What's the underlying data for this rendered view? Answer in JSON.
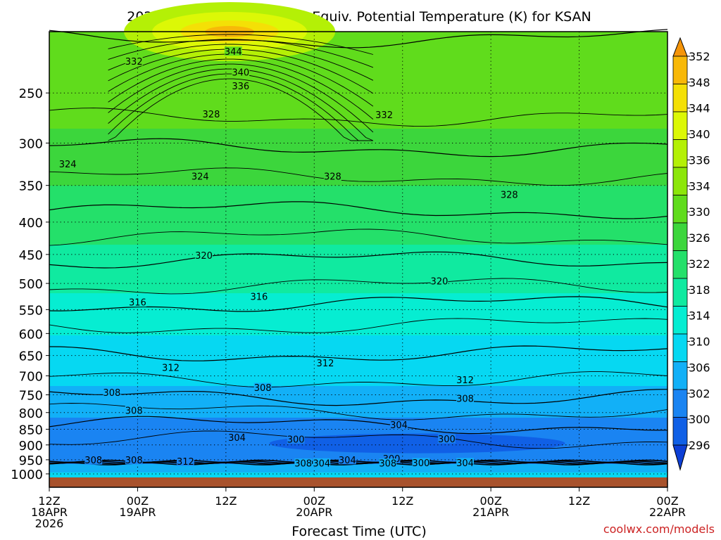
{
  "chart_data": {
    "type": "heatmap",
    "title": "2026041812 NAM Forecast Equiv. Potential Temperature (K) for KSAN",
    "xlabel": "Forecast Time (UTC)",
    "ylabel": "Pressure (hPa)",
    "y_ticks": [
      250,
      300,
      350,
      400,
      450,
      500,
      550,
      600,
      650,
      700,
      750,
      800,
      850,
      900,
      950,
      1000
    ],
    "ylim": [
      200,
      1013
    ],
    "x_ticks": [
      {
        "hour": 0,
        "line1": "12Z",
        "line2": "18APR",
        "line3": "2026"
      },
      {
        "hour": 12,
        "line1": "00Z",
        "line2": "19APR",
        "line3": ""
      },
      {
        "hour": 24,
        "line1": "12Z",
        "line2": "",
        "line3": ""
      },
      {
        "hour": 36,
        "line1": "00Z",
        "line2": "20APR",
        "line3": ""
      },
      {
        "hour": 48,
        "line1": "12Z",
        "line2": "",
        "line3": ""
      },
      {
        "hour": 60,
        "line1": "00Z",
        "line2": "21APR",
        "line3": ""
      },
      {
        "hour": 72,
        "line1": "12Z",
        "line2": "",
        "line3": ""
      },
      {
        "hour": 84,
        "line1": "00Z",
        "line2": "22APR",
        "line3": ""
      }
    ],
    "xlim": [
      0,
      84
    ],
    "colorbar": {
      "levels": [
        296,
        300,
        302,
        306,
        310,
        314,
        318,
        322,
        326,
        330,
        334,
        336,
        340,
        344,
        348,
        352
      ],
      "colors": [
        "#0d3fd6",
        "#1060e6",
        "#1a84f2",
        "#12b0f7",
        "#06d8f2",
        "#06edd2",
        "#10eaa0",
        "#24e06a",
        "#3cd63c",
        "#60dc1c",
        "#8ce60a",
        "#b4f006",
        "#dcf806",
        "#f4e006",
        "#f8b808",
        "#f59408"
      ]
    },
    "mean_profile": [
      {
        "p": 200,
        "theta": 332
      },
      {
        "p": 250,
        "theta": 332
      },
      {
        "p": 300,
        "theta": 329
      },
      {
        "p": 350,
        "theta": 326
      },
      {
        "p": 400,
        "theta": 324
      },
      {
        "p": 450,
        "theta": 321
      },
      {
        "p": 500,
        "theta": 319
      },
      {
        "p": 550,
        "theta": 316
      },
      {
        "p": 600,
        "theta": 314
      },
      {
        "p": 650,
        "theta": 312.5
      },
      {
        "p": 700,
        "theta": 311
      },
      {
        "p": 750,
        "theta": 309
      },
      {
        "p": 800,
        "theta": 306.5
      },
      {
        "p": 850,
        "theta": 304
      },
      {
        "p": 900,
        "theta": 302
      },
      {
        "p": 950,
        "theta": 305
      },
      {
        "p": 1000,
        "theta": 311
      },
      {
        "p": 1013,
        "theta": 312
      }
    ],
    "contour_labels": [
      {
        "text": "344",
        "hour": 25.0,
        "p": 215
      },
      {
        "text": "340",
        "hour": 26.0,
        "p": 232
      },
      {
        "text": "336",
        "hour": 26.0,
        "p": 244
      },
      {
        "text": "332",
        "hour": 11.5,
        "p": 223
      },
      {
        "text": "332",
        "hour": 45.5,
        "p": 271
      },
      {
        "text": "328",
        "hour": 22.0,
        "p": 270
      },
      {
        "text": "328",
        "hour": 38.5,
        "p": 339
      },
      {
        "text": "328",
        "hour": 62.5,
        "p": 362
      },
      {
        "text": "324",
        "hour": 2.5,
        "p": 324
      },
      {
        "text": "324",
        "hour": 20.5,
        "p": 339
      },
      {
        "text": "320",
        "hour": 21.0,
        "p": 452
      },
      {
        "text": "320",
        "hour": 53.0,
        "p": 496
      },
      {
        "text": "316",
        "hour": 12.0,
        "p": 536
      },
      {
        "text": "316",
        "hour": 28.5,
        "p": 525
      },
      {
        "text": "312",
        "hour": 16.5,
        "p": 680
      },
      {
        "text": "312",
        "hour": 37.5,
        "p": 668
      },
      {
        "text": "312",
        "hour": 56.5,
        "p": 711
      },
      {
        "text": "308",
        "hour": 8.5,
        "p": 744
      },
      {
        "text": "308",
        "hour": 29.0,
        "p": 731
      },
      {
        "text": "308",
        "hour": 56.5,
        "p": 761
      },
      {
        "text": "308",
        "hour": 11.5,
        "p": 794
      },
      {
        "text": "304",
        "hour": 47.5,
        "p": 837
      },
      {
        "text": "304",
        "hour": 25.5,
        "p": 877
      },
      {
        "text": "300",
        "hour": 33.5,
        "p": 882
      },
      {
        "text": "300",
        "hour": 54.0,
        "p": 881
      },
      {
        "text": "308",
        "hour": 6.0,
        "p": 952
      },
      {
        "text": "308",
        "hour": 11.5,
        "p": 951
      },
      {
        "text": "312",
        "hour": 18.5,
        "p": 956
      },
      {
        "text": "308",
        "hour": 34.5,
        "p": 963
      },
      {
        "text": "304",
        "hour": 37.0,
        "p": 962
      },
      {
        "text": "304",
        "hour": 40.5,
        "p": 951
      },
      {
        "text": "300",
        "hour": 46.5,
        "p": 946
      },
      {
        "text": "308",
        "hour": 46.0,
        "p": 963
      },
      {
        "text": "300",
        "hour": 50.5,
        "p": 961
      },
      {
        "text": "304",
        "hour": 56.5,
        "p": 961
      }
    ]
  },
  "credit": "coolwx.com/models",
  "colors": {
    "ground": "#a8522c",
    "credit": "#cc2222"
  }
}
